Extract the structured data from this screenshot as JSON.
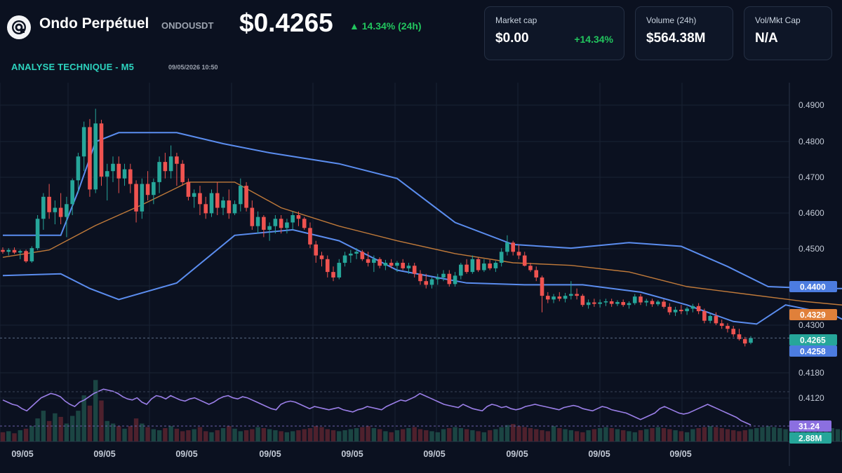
{
  "header": {
    "title": "Ondo Perpétuel",
    "symbol": "ONDOUSDT",
    "price": "$0.4265",
    "change": "▲ 14.34% (24h)",
    "analysis_label": "ANALYSE TECHNIQUE - M5",
    "analysis_time": "09/05/2026 10:50",
    "logo_icon": "ondo-logo-icon"
  },
  "stats": {
    "market_cap": {
      "label": "Market cap",
      "value": "$0.00",
      "delta": "+14.34%"
    },
    "volume": {
      "label": "Volume (24h)",
      "value": "$564.38M"
    },
    "vol_mkt_cap": {
      "label": "Vol/Mkt Cap",
      "value": "N/A"
    }
  },
  "colors": {
    "background": "#0b1120",
    "up": "#26a69a",
    "down": "#ef5350",
    "bollinger": "#5b8def",
    "sma": "#c07a3a",
    "rsi": "#9b7fe8",
    "accent_green": "#22c55e",
    "accent_teal": "#2dd4bf"
  },
  "chart_data": {
    "type": "candlestick",
    "y_ticks": [
      "0.4900",
      "0.4800",
      "0.4700",
      "0.4600",
      "0.4500",
      "0.4400",
      "0.4300",
      "0.4180",
      "0.4120"
    ],
    "x_labels": [
      "09/05",
      "09/05",
      "09/05",
      "09/05",
      "09/05",
      "09/05",
      "09/05",
      "09/05",
      "09/05"
    ],
    "ylim": [
      0.4108,
      0.496
    ],
    "grid": true,
    "price_tags": [
      {
        "value": "0.4400",
        "color": "#4c7ce0"
      },
      {
        "value": "0.4329",
        "color": "#e0803a"
      },
      {
        "value": "0.4265",
        "color": "#26a69a"
      },
      {
        "value": "0.4258",
        "color": "#4c7ce0"
      }
    ],
    "indicator_tags": [
      {
        "value": "31.24",
        "color": "#8b6fe0"
      },
      {
        "value": "2.88M",
        "color": "#26a69a"
      }
    ],
    "candles": [
      [
        0.4505,
        0.4512,
        0.4495,
        0.45
      ],
      [
        0.45,
        0.451,
        0.449,
        0.4505
      ],
      [
        0.4505,
        0.4512,
        0.4494,
        0.4498
      ],
      [
        0.4498,
        0.4506,
        0.448,
        0.4502
      ],
      [
        0.4502,
        0.4506,
        0.447,
        0.4474
      ],
      [
        0.4474,
        0.4515,
        0.447,
        0.451
      ],
      [
        0.451,
        0.46,
        0.4505,
        0.459
      ],
      [
        0.459,
        0.466,
        0.456,
        0.465
      ],
      [
        0.465,
        0.4685,
        0.459,
        0.4608
      ],
      [
        0.4608,
        0.464,
        0.4575,
        0.462
      ],
      [
        0.462,
        0.466,
        0.4575,
        0.4595
      ],
      [
        0.4595,
        0.465,
        0.454,
        0.463
      ],
      [
        0.463,
        0.47,
        0.46,
        0.4695
      ],
      [
        0.4695,
        0.477,
        0.466,
        0.476
      ],
      [
        0.476,
        0.4855,
        0.472,
        0.484
      ],
      [
        0.484,
        0.4862,
        0.465,
        0.467
      ],
      [
        0.467,
        0.489,
        0.466,
        0.485
      ],
      [
        0.485,
        0.486,
        0.468,
        0.4705
      ],
      [
        0.4705,
        0.474,
        0.464,
        0.472
      ],
      [
        0.472,
        0.476,
        0.469,
        0.474
      ],
      [
        0.474,
        0.476,
        0.466,
        0.47
      ],
      [
        0.47,
        0.474,
        0.468,
        0.4725
      ],
      [
        0.4725,
        0.474,
        0.466,
        0.4685
      ],
      [
        0.4685,
        0.4695,
        0.458,
        0.461
      ],
      [
        0.461,
        0.47,
        0.459,
        0.4685
      ],
      [
        0.4685,
        0.472,
        0.464,
        0.4655
      ],
      [
        0.4655,
        0.47,
        0.463,
        0.469
      ],
      [
        0.469,
        0.476,
        0.466,
        0.4745
      ],
      [
        0.4745,
        0.477,
        0.47,
        0.472
      ],
      [
        0.472,
        0.479,
        0.47,
        0.476
      ],
      [
        0.476,
        0.477,
        0.468,
        0.474
      ],
      [
        0.474,
        0.475,
        0.468,
        0.469
      ],
      [
        0.469,
        0.47,
        0.464,
        0.465
      ],
      [
        0.465,
        0.467,
        0.462,
        0.466
      ],
      [
        0.466,
        0.468,
        0.46,
        0.463
      ],
      [
        0.463,
        0.465,
        0.459,
        0.4605
      ],
      [
        0.4605,
        0.467,
        0.4595,
        0.466
      ],
      [
        0.466,
        0.469,
        0.46,
        0.462
      ],
      [
        0.462,
        0.465,
        0.46,
        0.464
      ],
      [
        0.464,
        0.467,
        0.459,
        0.4605
      ],
      [
        0.4605,
        0.464,
        0.46,
        0.463
      ],
      [
        0.463,
        0.47,
        0.461,
        0.468
      ],
      [
        0.468,
        0.469,
        0.461,
        0.462
      ],
      [
        0.462,
        0.464,
        0.456,
        0.457
      ],
      [
        0.457,
        0.461,
        0.455,
        0.4595
      ],
      [
        0.4595,
        0.46,
        0.454,
        0.456
      ],
      [
        0.456,
        0.458,
        0.453,
        0.457
      ],
      [
        0.457,
        0.46,
        0.455,
        0.459
      ],
      [
        0.459,
        0.46,
        0.455,
        0.4565
      ],
      [
        0.4565,
        0.459,
        0.455,
        0.458
      ],
      [
        0.458,
        0.461,
        0.456,
        0.46
      ],
      [
        0.46,
        0.461,
        0.457,
        0.459
      ],
      [
        0.459,
        0.4595,
        0.456,
        0.4565
      ],
      [
        0.4565,
        0.458,
        0.451,
        0.452
      ],
      [
        0.452,
        0.453,
        0.447,
        0.449
      ],
      [
        0.449,
        0.45,
        0.446,
        0.448
      ],
      [
        0.448,
        0.449,
        0.443,
        0.4445
      ],
      [
        0.4445,
        0.446,
        0.442,
        0.443
      ],
      [
        0.443,
        0.448,
        0.4425,
        0.447
      ],
      [
        0.447,
        0.45,
        0.446,
        0.449
      ],
      [
        0.449,
        0.4505,
        0.447,
        0.4495
      ],
      [
        0.4495,
        0.451,
        0.448,
        0.45
      ],
      [
        0.45,
        0.4505,
        0.4475,
        0.448
      ],
      [
        0.448,
        0.45,
        0.446,
        0.447
      ],
      [
        0.447,
        0.449,
        0.4445,
        0.448
      ],
      [
        0.448,
        0.4485,
        0.4455,
        0.4462
      ],
      [
        0.4462,
        0.4478,
        0.445,
        0.447
      ],
      [
        0.447,
        0.448,
        0.4455,
        0.4462
      ],
      [
        0.4462,
        0.4475,
        0.4445,
        0.447
      ],
      [
        0.447,
        0.448,
        0.445,
        0.4455
      ],
      [
        0.4455,
        0.447,
        0.444,
        0.4462
      ],
      [
        0.4462,
        0.447,
        0.443,
        0.444
      ],
      [
        0.444,
        0.445,
        0.441,
        0.442
      ],
      [
        0.442,
        0.444,
        0.44,
        0.441
      ],
      [
        0.441,
        0.443,
        0.44,
        0.4425
      ],
      [
        0.4425,
        0.444,
        0.441,
        0.443
      ],
      [
        0.443,
        0.445,
        0.442,
        0.444
      ],
      [
        0.444,
        0.445,
        0.4405,
        0.4412
      ],
      [
        0.4412,
        0.4445,
        0.4405,
        0.4435
      ],
      [
        0.4435,
        0.447,
        0.4425,
        0.4465
      ],
      [
        0.4465,
        0.448,
        0.444,
        0.4445
      ],
      [
        0.4445,
        0.449,
        0.444,
        0.448
      ],
      [
        0.448,
        0.4485,
        0.4445,
        0.445
      ],
      [
        0.445,
        0.448,
        0.4445,
        0.4468
      ],
      [
        0.4468,
        0.4478,
        0.445,
        0.4455
      ],
      [
        0.4455,
        0.4475,
        0.4445,
        0.447
      ],
      [
        0.447,
        0.451,
        0.446,
        0.45
      ],
      [
        0.45,
        0.4545,
        0.449,
        0.4525
      ],
      [
        0.4525,
        0.453,
        0.449,
        0.45
      ],
      [
        0.45,
        0.452,
        0.448,
        0.449
      ],
      [
        0.449,
        0.45,
        0.446,
        0.4462
      ],
      [
        0.4462,
        0.447,
        0.4445,
        0.445
      ],
      [
        0.445,
        0.446,
        0.442,
        0.443
      ],
      [
        0.443,
        0.4435,
        0.4335,
        0.438
      ],
      [
        0.438,
        0.439,
        0.436,
        0.437
      ],
      [
        0.437,
        0.4385,
        0.436,
        0.4378
      ],
      [
        0.4378,
        0.439,
        0.4365,
        0.4372
      ],
      [
        0.4372,
        0.4388,
        0.4362,
        0.438
      ],
      [
        0.438,
        0.442,
        0.437,
        0.4385
      ],
      [
        0.4385,
        0.44,
        0.437,
        0.438
      ],
      [
        0.438,
        0.4385,
        0.435,
        0.4355
      ],
      [
        0.4355,
        0.437,
        0.4345,
        0.4362
      ],
      [
        0.4362,
        0.4372,
        0.435,
        0.4358
      ],
      [
        0.4358,
        0.437,
        0.4348,
        0.4362
      ],
      [
        0.4362,
        0.4372,
        0.4352,
        0.4365
      ],
      [
        0.4365,
        0.4372,
        0.435,
        0.4358
      ],
      [
        0.4358,
        0.4368,
        0.4352,
        0.4363
      ],
      [
        0.4363,
        0.437,
        0.435,
        0.4355
      ],
      [
        0.4355,
        0.4365,
        0.4345,
        0.436
      ],
      [
        0.436,
        0.4385,
        0.4355,
        0.4378
      ],
      [
        0.4378,
        0.4385,
        0.4355,
        0.4362
      ],
      [
        0.4362,
        0.4372,
        0.4352,
        0.4366
      ],
      [
        0.4366,
        0.4372,
        0.435,
        0.4357
      ],
      [
        0.4357,
        0.4368,
        0.4352,
        0.4364
      ],
      [
        0.4364,
        0.437,
        0.4345,
        0.435
      ],
      [
        0.435,
        0.436,
        0.4328,
        0.4335
      ],
      [
        0.4335,
        0.435,
        0.4325,
        0.4342
      ],
      [
        0.4342,
        0.4355,
        0.433,
        0.4338
      ],
      [
        0.4338,
        0.435,
        0.4328,
        0.4345
      ],
      [
        0.4345,
        0.4358,
        0.4335,
        0.4352
      ],
      [
        0.4352,
        0.436,
        0.433,
        0.4338
      ],
      [
        0.4338,
        0.4345,
        0.4305,
        0.4312
      ],
      [
        0.4312,
        0.433,
        0.4305,
        0.4325
      ],
      [
        0.4325,
        0.4335,
        0.43,
        0.4305
      ],
      [
        0.4305,
        0.4315,
        0.429,
        0.4298
      ],
      [
        0.4298,
        0.4305,
        0.428,
        0.429
      ],
      [
        0.429,
        0.4298,
        0.4268,
        0.4275
      ],
      [
        0.4275,
        0.429,
        0.4258,
        0.4262
      ],
      [
        0.4262,
        0.4268,
        0.4242,
        0.425
      ],
      [
        0.4252,
        0.427,
        0.4248,
        0.4265
      ]
    ],
    "bb_upper": [
      [
        0,
        0.4545
      ],
      [
        10,
        0.4545
      ],
      [
        13,
        0.4665
      ],
      [
        16,
        0.48
      ],
      [
        20,
        0.4825
      ],
      [
        30,
        0.4825
      ],
      [
        38,
        0.4795
      ],
      [
        46,
        0.477
      ],
      [
        58,
        0.474
      ],
      [
        68,
        0.47
      ],
      [
        78,
        0.458
      ],
      [
        88,
        0.452
      ],
      [
        98,
        0.451
      ],
      [
        108,
        0.4525
      ],
      [
        117,
        0.4515
      ],
      [
        125,
        0.446
      ],
      [
        132,
        0.4405
      ],
      [
        140,
        0.44
      ],
      [
        148,
        0.44
      ],
      [
        152,
        0.44
      ],
      [
        155,
        0.4392
      ]
    ],
    "bb_lower": [
      [
        0,
        0.4435
      ],
      [
        10,
        0.444
      ],
      [
        15,
        0.44
      ],
      [
        20,
        0.437
      ],
      [
        30,
        0.4415
      ],
      [
        40,
        0.4545
      ],
      [
        50,
        0.456
      ],
      [
        58,
        0.453
      ],
      [
        68,
        0.445
      ],
      [
        80,
        0.4415
      ],
      [
        90,
        0.441
      ],
      [
        100,
        0.441
      ],
      [
        110,
        0.439
      ],
      [
        118,
        0.4355
      ],
      [
        126,
        0.431
      ],
      [
        130,
        0.4303
      ],
      [
        135,
        0.4355
      ],
      [
        143,
        0.433
      ],
      [
        150,
        0.4275
      ],
      [
        155,
        0.4253
      ]
    ],
    "sma": [
      [
        0,
        0.4485
      ],
      [
        8,
        0.4505
      ],
      [
        16,
        0.4572
      ],
      [
        24,
        0.4628
      ],
      [
        32,
        0.469
      ],
      [
        40,
        0.469
      ],
      [
        48,
        0.462
      ],
      [
        58,
        0.457
      ],
      [
        68,
        0.453
      ],
      [
        78,
        0.4495
      ],
      [
        88,
        0.447
      ],
      [
        98,
        0.4463
      ],
      [
        108,
        0.4445
      ],
      [
        118,
        0.4405
      ],
      [
        128,
        0.4385
      ],
      [
        138,
        0.4365
      ],
      [
        148,
        0.435
      ],
      [
        155,
        0.4329
      ]
    ],
    "rsi": [
      54,
      52,
      50,
      49,
      46,
      44,
      48,
      52,
      56,
      58,
      60,
      59,
      57,
      53,
      50,
      48,
      52,
      54,
      57,
      60,
      62,
      64,
      63,
      62,
      60,
      57,
      55,
      54,
      56,
      52,
      50,
      55,
      58,
      57,
      55,
      58,
      56,
      54,
      53,
      55,
      56,
      54,
      52,
      50,
      52,
      55,
      57,
      58,
      56,
      55,
      57,
      56,
      54,
      52,
      50,
      48,
      46,
      45,
      50,
      52,
      53,
      52,
      50,
      48,
      46,
      48,
      47,
      46,
      45,
      46,
      47,
      45,
      44,
      43,
      45,
      46,
      48,
      47,
      46,
      45,
      48,
      50,
      52,
      54,
      53,
      55,
      57,
      60,
      58,
      56,
      54,
      52,
      50,
      49,
      48,
      47,
      50,
      48,
      46,
      45,
      44,
      48,
      50,
      49,
      47,
      48,
      46,
      45,
      46,
      48,
      49,
      50,
      49,
      48,
      47,
      46,
      45,
      47,
      48,
      49,
      48,
      46,
      45,
      44,
      46,
      48,
      47,
      45,
      44,
      43,
      42,
      40,
      38,
      36,
      38,
      40,
      42,
      46,
      48,
      46,
      44,
      42,
      41,
      42,
      44,
      46,
      48,
      50,
      48,
      46,
      44,
      42,
      40,
      38,
      35,
      33,
      31
    ],
    "volume": [
      18,
      20,
      16,
      22,
      25,
      30,
      45,
      60,
      40,
      55,
      48,
      35,
      50,
      60,
      90,
      70,
      120,
      80,
      40,
      35,
      30,
      25,
      30,
      45,
      35,
      28,
      24,
      22,
      26,
      30,
      25,
      20,
      22,
      24,
      28,
      20,
      18,
      22,
      26,
      30,
      25,
      20,
      22,
      24,
      28,
      26,
      24,
      22,
      20,
      18,
      20,
      22,
      24,
      26,
      30,
      28,
      24,
      22,
      20,
      22,
      24,
      26,
      28,
      30,
      26,
      24,
      20,
      18,
      22,
      24,
      26,
      28,
      24,
      22,
      20,
      18,
      24,
      26,
      28,
      26,
      24,
      22,
      20,
      18,
      22,
      24,
      28,
      32,
      34,
      30,
      28,
      26,
      24,
      22,
      20,
      30,
      26,
      24,
      22,
      20,
      18,
      22,
      24,
      26,
      28,
      26,
      24,
      22,
      20,
      18,
      22,
      24,
      26,
      28,
      26,
      24,
      22,
      20,
      18,
      24,
      26,
      28,
      30,
      28,
      26,
      24,
      22,
      20,
      22,
      24,
      26,
      28,
      30,
      28,
      26,
      24,
      22,
      20,
      24,
      26,
      28,
      30,
      28,
      26,
      24,
      22,
      20,
      24,
      26,
      28,
      30,
      34,
      30,
      28,
      26,
      24
    ]
  }
}
